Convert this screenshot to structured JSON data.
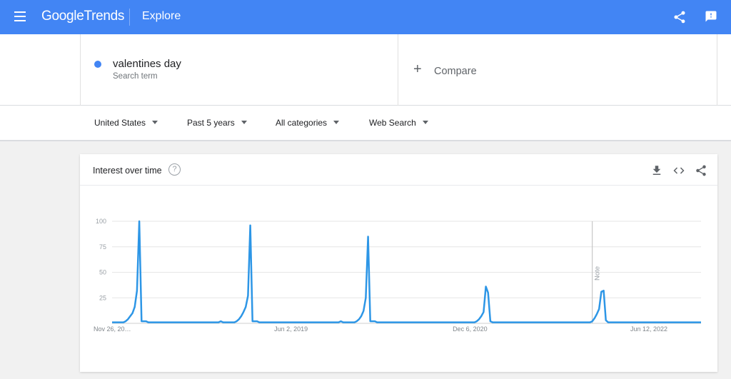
{
  "header": {
    "logo_google": "Google",
    "logo_trends": "Trends",
    "page_title": "Explore"
  },
  "search_term": {
    "name": "valentines day",
    "subtitle": "Search term",
    "color": "#4285f4"
  },
  "compare": {
    "label": "Compare",
    "plus": "+"
  },
  "filters": {
    "region": "United States",
    "time_range": "Past 5 years",
    "category": "All categories",
    "search_type": "Web Search"
  },
  "card": {
    "title": "Interest over time",
    "help": "?"
  },
  "colors": {
    "brand": "#4285f4",
    "line": "#2d96e6"
  },
  "chart_data": {
    "type": "line",
    "title": "",
    "ylim": [
      0,
      100
    ],
    "y_ticks": [
      100,
      75,
      50,
      25
    ],
    "x_tick_labels": [
      "Nov 26, 20…",
      "Jun 2, 2019",
      "Dec 6, 2020",
      "Jun 12, 2022"
    ],
    "x_range_weeks": [
      0,
      260
    ],
    "x_tick_positions": [
      0,
      79,
      158,
      237
    ],
    "note": {
      "label": "Note",
      "x": 212
    },
    "grid": true,
    "series": [
      {
        "values": [
          [
            0,
            1
          ],
          [
            3,
            1
          ],
          [
            5,
            1
          ],
          [
            6,
            2
          ],
          [
            7,
            4
          ],
          [
            8,
            7
          ],
          [
            9,
            10
          ],
          [
            10,
            16
          ],
          [
            11,
            32
          ],
          [
            12,
            100
          ],
          [
            13,
            2
          ],
          [
            14,
            2
          ],
          [
            15,
            2
          ],
          [
            16,
            1
          ],
          [
            47,
            1
          ],
          [
            48,
            2
          ],
          [
            49,
            1
          ],
          [
            51,
            1
          ],
          [
            54,
            1
          ],
          [
            55,
            2
          ],
          [
            56,
            4
          ],
          [
            57,
            7
          ],
          [
            58,
            11
          ],
          [
            59,
            16
          ],
          [
            60,
            27
          ],
          [
            61,
            96
          ],
          [
            62,
            2
          ],
          [
            64,
            2
          ],
          [
            65,
            1
          ],
          [
            100,
            1
          ],
          [
            101,
            2
          ],
          [
            102,
            1
          ],
          [
            104,
            1
          ],
          [
            107,
            1
          ],
          [
            108,
            2
          ],
          [
            109,
            4
          ],
          [
            110,
            7
          ],
          [
            111,
            12
          ],
          [
            112,
            25
          ],
          [
            113,
            85
          ],
          [
            114,
            2
          ],
          [
            116,
            2
          ],
          [
            117,
            1
          ],
          [
            160,
            1
          ],
          [
            161,
            2
          ],
          [
            162,
            4
          ],
          [
            163,
            7
          ],
          [
            164,
            11
          ],
          [
            165,
            36
          ],
          [
            166,
            30
          ],
          [
            167,
            2
          ],
          [
            168,
            1
          ],
          [
            206,
            1
          ],
          [
            211,
            1
          ],
          [
            212,
            2
          ],
          [
            213,
            5
          ],
          [
            214,
            9
          ],
          [
            215,
            14
          ],
          [
            216,
            31
          ],
          [
            217,
            32
          ],
          [
            218,
            3
          ],
          [
            219,
            1
          ],
          [
            222,
            1
          ],
          [
            260,
            1
          ]
        ]
      }
    ]
  }
}
